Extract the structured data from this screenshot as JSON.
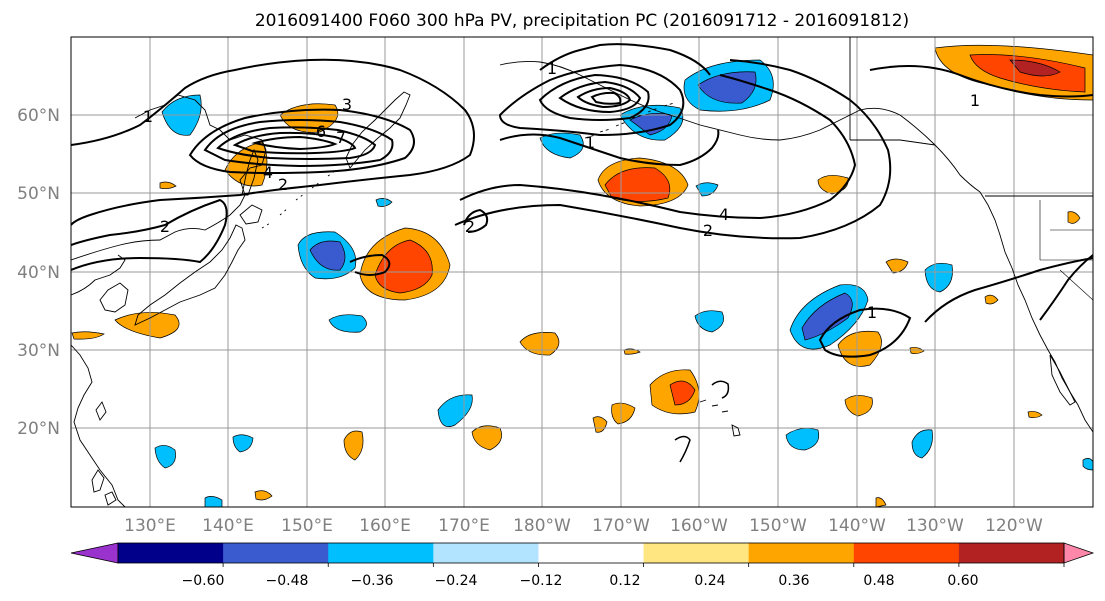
{
  "title": "2016091400 F060 300 hPa PV, precipitation PC (2016091712 - 2016091812)",
  "map": {
    "lon_range_deg_east": [
      120,
      250
    ],
    "lat_range_deg_north": [
      10,
      70
    ],
    "gridline_interval_deg": 10,
    "lat_labels": [
      "60°N",
      "50°N",
      "40°N",
      "30°N",
      "20°N"
    ],
    "lon_labels": [
      "130°E",
      "140°E",
      "150°E",
      "160°E",
      "170°E",
      "180°W",
      "170°W",
      "160°W",
      "150°W",
      "140°W",
      "130°W",
      "120°W"
    ],
    "pv_contour_labels": [
      "1",
      "2",
      "3",
      "4",
      "6",
      "7",
      "2",
      "4",
      "2",
      "1",
      "1",
      "1",
      "2",
      "1"
    ]
  },
  "colorbar": {
    "tick_labels": [
      "−0.60",
      "−0.48",
      "−0.36",
      "−0.24",
      "−0.12",
      "0.12",
      "0.24",
      "0.36",
      "0.48",
      "0.60"
    ],
    "colors": [
      "#9a32cd",
      "#00008b",
      "#3a5bd0",
      "#00bfff",
      "#b2e4ff",
      "#ffffff",
      "#ffe680",
      "#ffa500",
      "#ff4500",
      "#b22222",
      "#ff88aa"
    ]
  }
}
